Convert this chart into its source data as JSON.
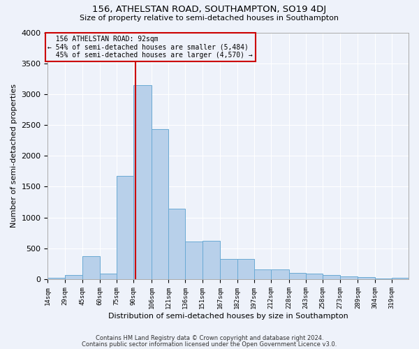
{
  "title": "156, ATHELSTAN ROAD, SOUTHAMPTON, SO19 4DJ",
  "subtitle": "Size of property relative to semi-detached houses in Southampton",
  "xlabel": "Distribution of semi-detached houses by size in Southampton",
  "ylabel": "Number of semi-detached properties",
  "footnote1": "Contains HM Land Registry data © Crown copyright and database right 2024.",
  "footnote2": "Contains public sector information licensed under the Open Government Licence v3.0.",
  "property_size": 92,
  "property_label": "156 ATHELSTAN ROAD: 92sqm",
  "pct_smaller": 54,
  "count_smaller": 5484,
  "pct_larger": 45,
  "count_larger": 4570,
  "bar_color": "#b8d0ea",
  "bar_edge_color": "#6aaad4",
  "vline_color": "#cc0000",
  "annotation_box_color": "#cc0000",
  "bg_color": "#eef2fa",
  "grid_color": "#ffffff",
  "categories": [
    "14sqm",
    "29sqm",
    "45sqm",
    "60sqm",
    "75sqm",
    "90sqm",
    "106sqm",
    "121sqm",
    "136sqm",
    "151sqm",
    "167sqm",
    "182sqm",
    "197sqm",
    "212sqm",
    "228sqm",
    "243sqm",
    "258sqm",
    "273sqm",
    "289sqm",
    "304sqm",
    "319sqm"
  ],
  "bin_edges": [
    14,
    29,
    45,
    60,
    75,
    90,
    106,
    121,
    136,
    151,
    167,
    182,
    197,
    212,
    228,
    243,
    258,
    273,
    289,
    304,
    319,
    334
  ],
  "values": [
    25,
    65,
    375,
    95,
    1670,
    3140,
    2430,
    1140,
    615,
    625,
    330,
    325,
    155,
    155,
    100,
    90,
    65,
    50,
    35,
    12,
    25
  ],
  "ylim": [
    0,
    4000
  ],
  "yticks": [
    0,
    500,
    1000,
    1500,
    2000,
    2500,
    3000,
    3500,
    4000
  ]
}
